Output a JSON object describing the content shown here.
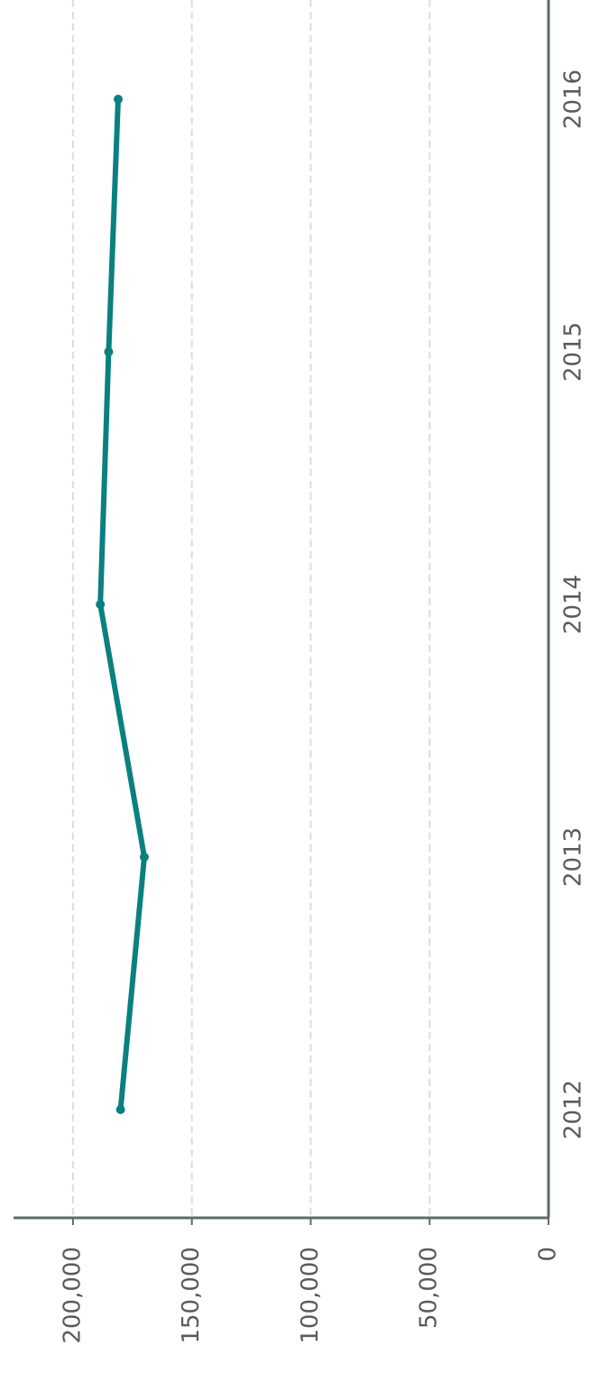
{
  "chart_data": {
    "type": "line",
    "categories": [
      "2012",
      "2013",
      "2014",
      "2015",
      "2016"
    ],
    "series": [
      {
        "color": "#0a8080",
        "values": [
          180000,
          170000,
          188500,
          185000,
          181000
        ]
      }
    ],
    "ylim": [
      0,
      225000
    ],
    "yticks": [
      0,
      {
        "value": 50000,
        "label": "50,000"
      },
      {
        "value": 100000,
        "label": "100,000"
      },
      {
        "value": 150000,
        "label": "150,000"
      },
      {
        "value": 200000,
        "label": "200,000"
      }
    ],
    "grid": true
  }
}
